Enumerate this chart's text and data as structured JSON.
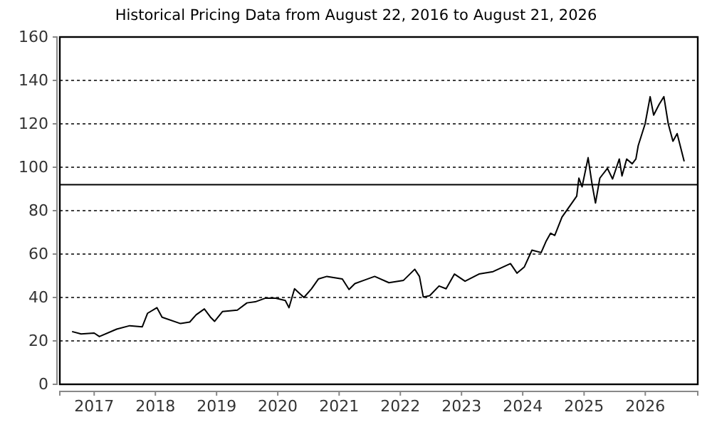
{
  "chart_data": {
    "type": "line",
    "title": "Historical Pricing Data from August 22, 2016 to August 21, 2026",
    "x": [
      "2016-08-22",
      "2016-10-15",
      "2017-01-01",
      "2017-02-01",
      "2017-05-15",
      "2017-08-01",
      "2017-10-15",
      "2017-11-15",
      "2018-01-10",
      "2018-02-10",
      "2018-05-30",
      "2018-07-25",
      "2018-09-01",
      "2018-10-20",
      "2018-11-25",
      "2018-12-20",
      "2019-02-05",
      "2019-05-05",
      "2019-07-01",
      "2019-08-20",
      "2019-10-20",
      "2019-12-20",
      "2020-02-15",
      "2020-03-08",
      "2020-04-10",
      "2020-06-05",
      "2020-07-20",
      "2020-08-30",
      "2020-10-20",
      "2021-01-20",
      "2021-03-01",
      "2021-04-05",
      "2021-08-01",
      "2021-10-25",
      "2022-01-20",
      "2022-03-28",
      "2022-04-25",
      "2022-05-18",
      "2022-06-25",
      "2022-08-20",
      "2022-10-01",
      "2022-11-20",
      "2023-01-22",
      "2023-04-15",
      "2023-07-08",
      "2023-10-20",
      "2023-11-28",
      "2024-01-10",
      "2024-02-25",
      "2024-04-20",
      "2024-05-20",
      "2024-06-15",
      "2024-07-10",
      "2024-08-22",
      "2024-10-20",
      "2024-11-18",
      "2024-12-01",
      "2024-12-20",
      "2025-01-25",
      "2025-02-18",
      "2025-03-10",
      "2025-04-05",
      "2025-05-20",
      "2025-06-20",
      "2025-07-30",
      "2025-08-15",
      "2025-09-12",
      "2025-10-15",
      "2025-11-06",
      "2025-11-20",
      "2025-12-31",
      "2026-01-30",
      "2026-02-20",
      "2026-03-25",
      "2026-04-22",
      "2026-05-18",
      "2026-06-15",
      "2026-07-10",
      "2026-08-21"
    ],
    "series": [
      {
        "color": "#000000",
        "values": [
          24.3,
          23.2,
          23.6,
          22,
          25.4,
          27,
          26.5,
          32.7,
          35.3,
          30.9,
          28,
          28.7,
          32,
          34.7,
          31,
          29,
          33.5,
          34.2,
          37.5,
          38,
          39.7,
          39.7,
          38.6,
          35.3,
          44,
          40,
          44,
          48.5,
          49.7,
          48.5,
          43.7,
          46.4,
          49.7,
          46.8,
          47.9,
          53,
          49.7,
          40.2,
          40.8,
          45.3,
          44,
          50.8,
          47.5,
          50.8,
          51.9,
          55.6,
          51.2,
          54,
          61.8,
          60.7,
          66,
          69.6,
          68.6,
          77,
          83.5,
          86.7,
          95,
          91,
          104.4,
          92,
          83.5,
          95,
          99.5,
          94.6,
          103.8,
          96,
          103.8,
          101.6,
          103.8,
          110,
          120,
          132.5,
          124,
          129,
          132.5,
          120,
          112,
          115.5,
          102.7
        ]
      }
    ],
    "xlim": [
      "2016-06-10",
      "2026-11-10"
    ],
    "xticks": [
      {
        "value": "2017-01-01",
        "label": "2017"
      },
      {
        "value": "2018-01-01",
        "label": "2018"
      },
      {
        "value": "2019-01-01",
        "label": "2019"
      },
      {
        "value": "2020-01-01",
        "label": "2020"
      },
      {
        "value": "2021-01-01",
        "label": "2021"
      },
      {
        "value": "2022-01-01",
        "label": "2022"
      },
      {
        "value": "2023-01-01",
        "label": "2023"
      },
      {
        "value": "2024-01-01",
        "label": "2024"
      },
      {
        "value": "2025-01-01",
        "label": "2025"
      },
      {
        "value": "2026-01-01",
        "label": "2026"
      }
    ],
    "ylim": [
      0,
      160
    ],
    "yticks": [
      0,
      20,
      40,
      60,
      80,
      100,
      120,
      140,
      160
    ],
    "grid": "y",
    "marker": "none",
    "line_style": "solid",
    "ref_lines": [
      {
        "axis": "y",
        "value": 92,
        "color": "#000000"
      }
    ]
  }
}
